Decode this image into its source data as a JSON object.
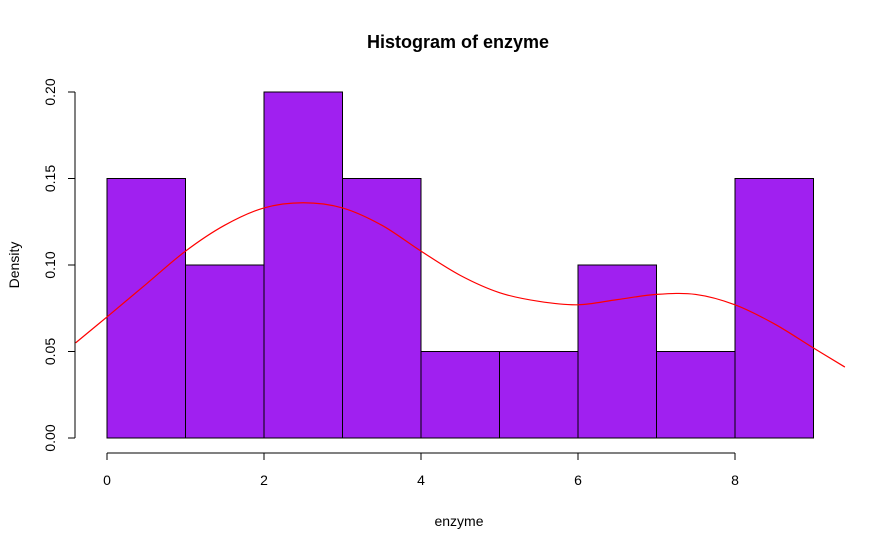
{
  "chart_data": {
    "type": "bar",
    "title": "Histogram of enzyme",
    "xlabel": "enzyme",
    "ylabel": "Density",
    "bins": [
      {
        "x0": 0,
        "x1": 1,
        "density": 0.15
      },
      {
        "x0": 1,
        "x1": 2,
        "density": 0.1
      },
      {
        "x0": 2,
        "x1": 3,
        "density": 0.2
      },
      {
        "x0": 3,
        "x1": 4,
        "density": 0.15
      },
      {
        "x0": 4,
        "x1": 5,
        "density": 0.05
      },
      {
        "x0": 5,
        "x1": 6,
        "density": 0.05
      },
      {
        "x0": 6,
        "x1": 7,
        "density": 0.1
      },
      {
        "x0": 7,
        "x1": 8,
        "density": 0.05
      },
      {
        "x0": 8,
        "x1": 9,
        "density": 0.15
      }
    ],
    "density_curve": {
      "x": [
        -0.4,
        0,
        0.5,
        1,
        1.5,
        2,
        2.5,
        3,
        3.5,
        4,
        4.5,
        5,
        5.5,
        6,
        6.5,
        7,
        7.5,
        8,
        8.5,
        9,
        9.4
      ],
      "y": [
        0.055,
        0.07,
        0.089,
        0.108,
        0.123,
        0.133,
        0.136,
        0.133,
        0.123,
        0.108,
        0.094,
        0.084,
        0.079,
        0.077,
        0.08,
        0.083,
        0.083,
        0.077,
        0.066,
        0.052,
        0.041
      ]
    },
    "x_ticks": [
      0,
      2,
      4,
      6,
      8
    ],
    "y_ticks": [
      0.0,
      0.05,
      0.1,
      0.15,
      0.2
    ],
    "x_tick_labels": [
      "0",
      "2",
      "4",
      "6",
      "8"
    ],
    "y_tick_labels": [
      "0.00",
      "0.05",
      "0.10",
      "0.15",
      "0.20"
    ],
    "xlim": [
      -0.4,
      9.4
    ],
    "ylim": [
      0,
      0.2
    ],
    "grid": false,
    "colors": {
      "bar_fill": "#a020f0",
      "bar_border": "#000000",
      "density_line": "#ff0000"
    }
  }
}
